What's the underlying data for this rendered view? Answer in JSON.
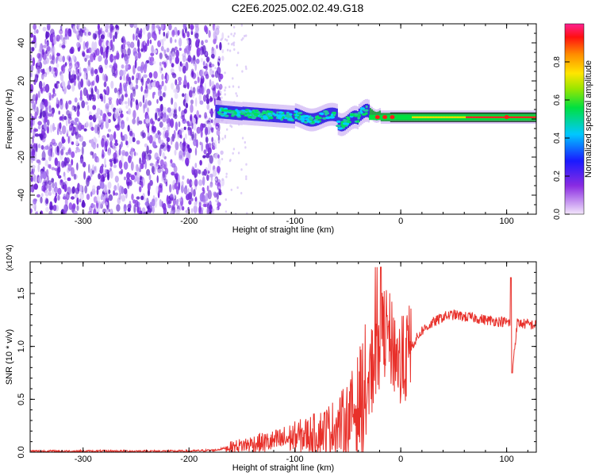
{
  "title": "C2E6.2025.002.02.49.G18",
  "chart_data": [
    {
      "type": "heatmap",
      "name": "spectrogram",
      "xlabel": "Height of straight line (km)",
      "ylabel": "Frequency (Hz)",
      "xlim": [
        -350,
        128
      ],
      "ylim": [
        -50,
        50
      ],
      "xticks": [
        -300,
        -200,
        -100,
        0,
        100
      ],
      "yticks": [
        -40,
        -20,
        0,
        20,
        40
      ],
      "colorbar": {
        "label": "Normalized spectral amplitude",
        "range": [
          0,
          1
        ],
        "ticks": [
          "0.0",
          "0.2",
          "0.4",
          "0.6",
          "0.8"
        ]
      },
      "regions": [
        {
          "x": [
            -350,
            -170
          ],
          "freq": [
            -50,
            50
          ],
          "amplitude": "low, scattered noise"
        },
        {
          "x": [
            -175,
            -30
          ],
          "center_freq": [
            4,
            2,
            0,
            1,
            -2,
            3,
            0
          ],
          "amplitude": "medium"
        },
        {
          "x": [
            -30,
            128
          ],
          "center_freq": 1,
          "amplitude": "high, narrow band"
        }
      ]
    },
    {
      "type": "line",
      "name": "snr",
      "xlabel": "Height of straight line (km)",
      "ylabel": "SNR (10 * v/v)",
      "y_multiplier": "(x10^4)",
      "xlim": [
        -350,
        128
      ],
      "ylim": [
        0,
        1.8
      ],
      "xticks": [
        -300,
        -200,
        -100,
        0,
        100
      ],
      "yticks": [
        "0.0",
        "0.5",
        "1.0",
        "1.5"
      ],
      "series": [
        {
          "color": "#e8302a",
          "x": [
            -350,
            -300,
            -250,
            -200,
            -175,
            -160,
            -140,
            -120,
            -100,
            -80,
            -60,
            -50,
            -40,
            -30,
            -25,
            -20,
            -15,
            -10,
            -5,
            0,
            10,
            20,
            30,
            40,
            50,
            60,
            70,
            80,
            90,
            100,
            103,
            105,
            110,
            120,
            128
          ],
          "y": [
            0.01,
            0.01,
            0.01,
            0.01,
            0.02,
            0.05,
            0.08,
            0.1,
            0.14,
            0.18,
            0.25,
            0.32,
            0.45,
            0.65,
            0.9,
            1.05,
            1.15,
            1.05,
            0.95,
            0.8,
            1.0,
            1.15,
            1.22,
            1.28,
            1.3,
            1.28,
            1.27,
            1.25,
            1.24,
            1.23,
            1.22,
            0.75,
            1.22,
            1.21,
            1.2
          ]
        }
      ]
    }
  ]
}
